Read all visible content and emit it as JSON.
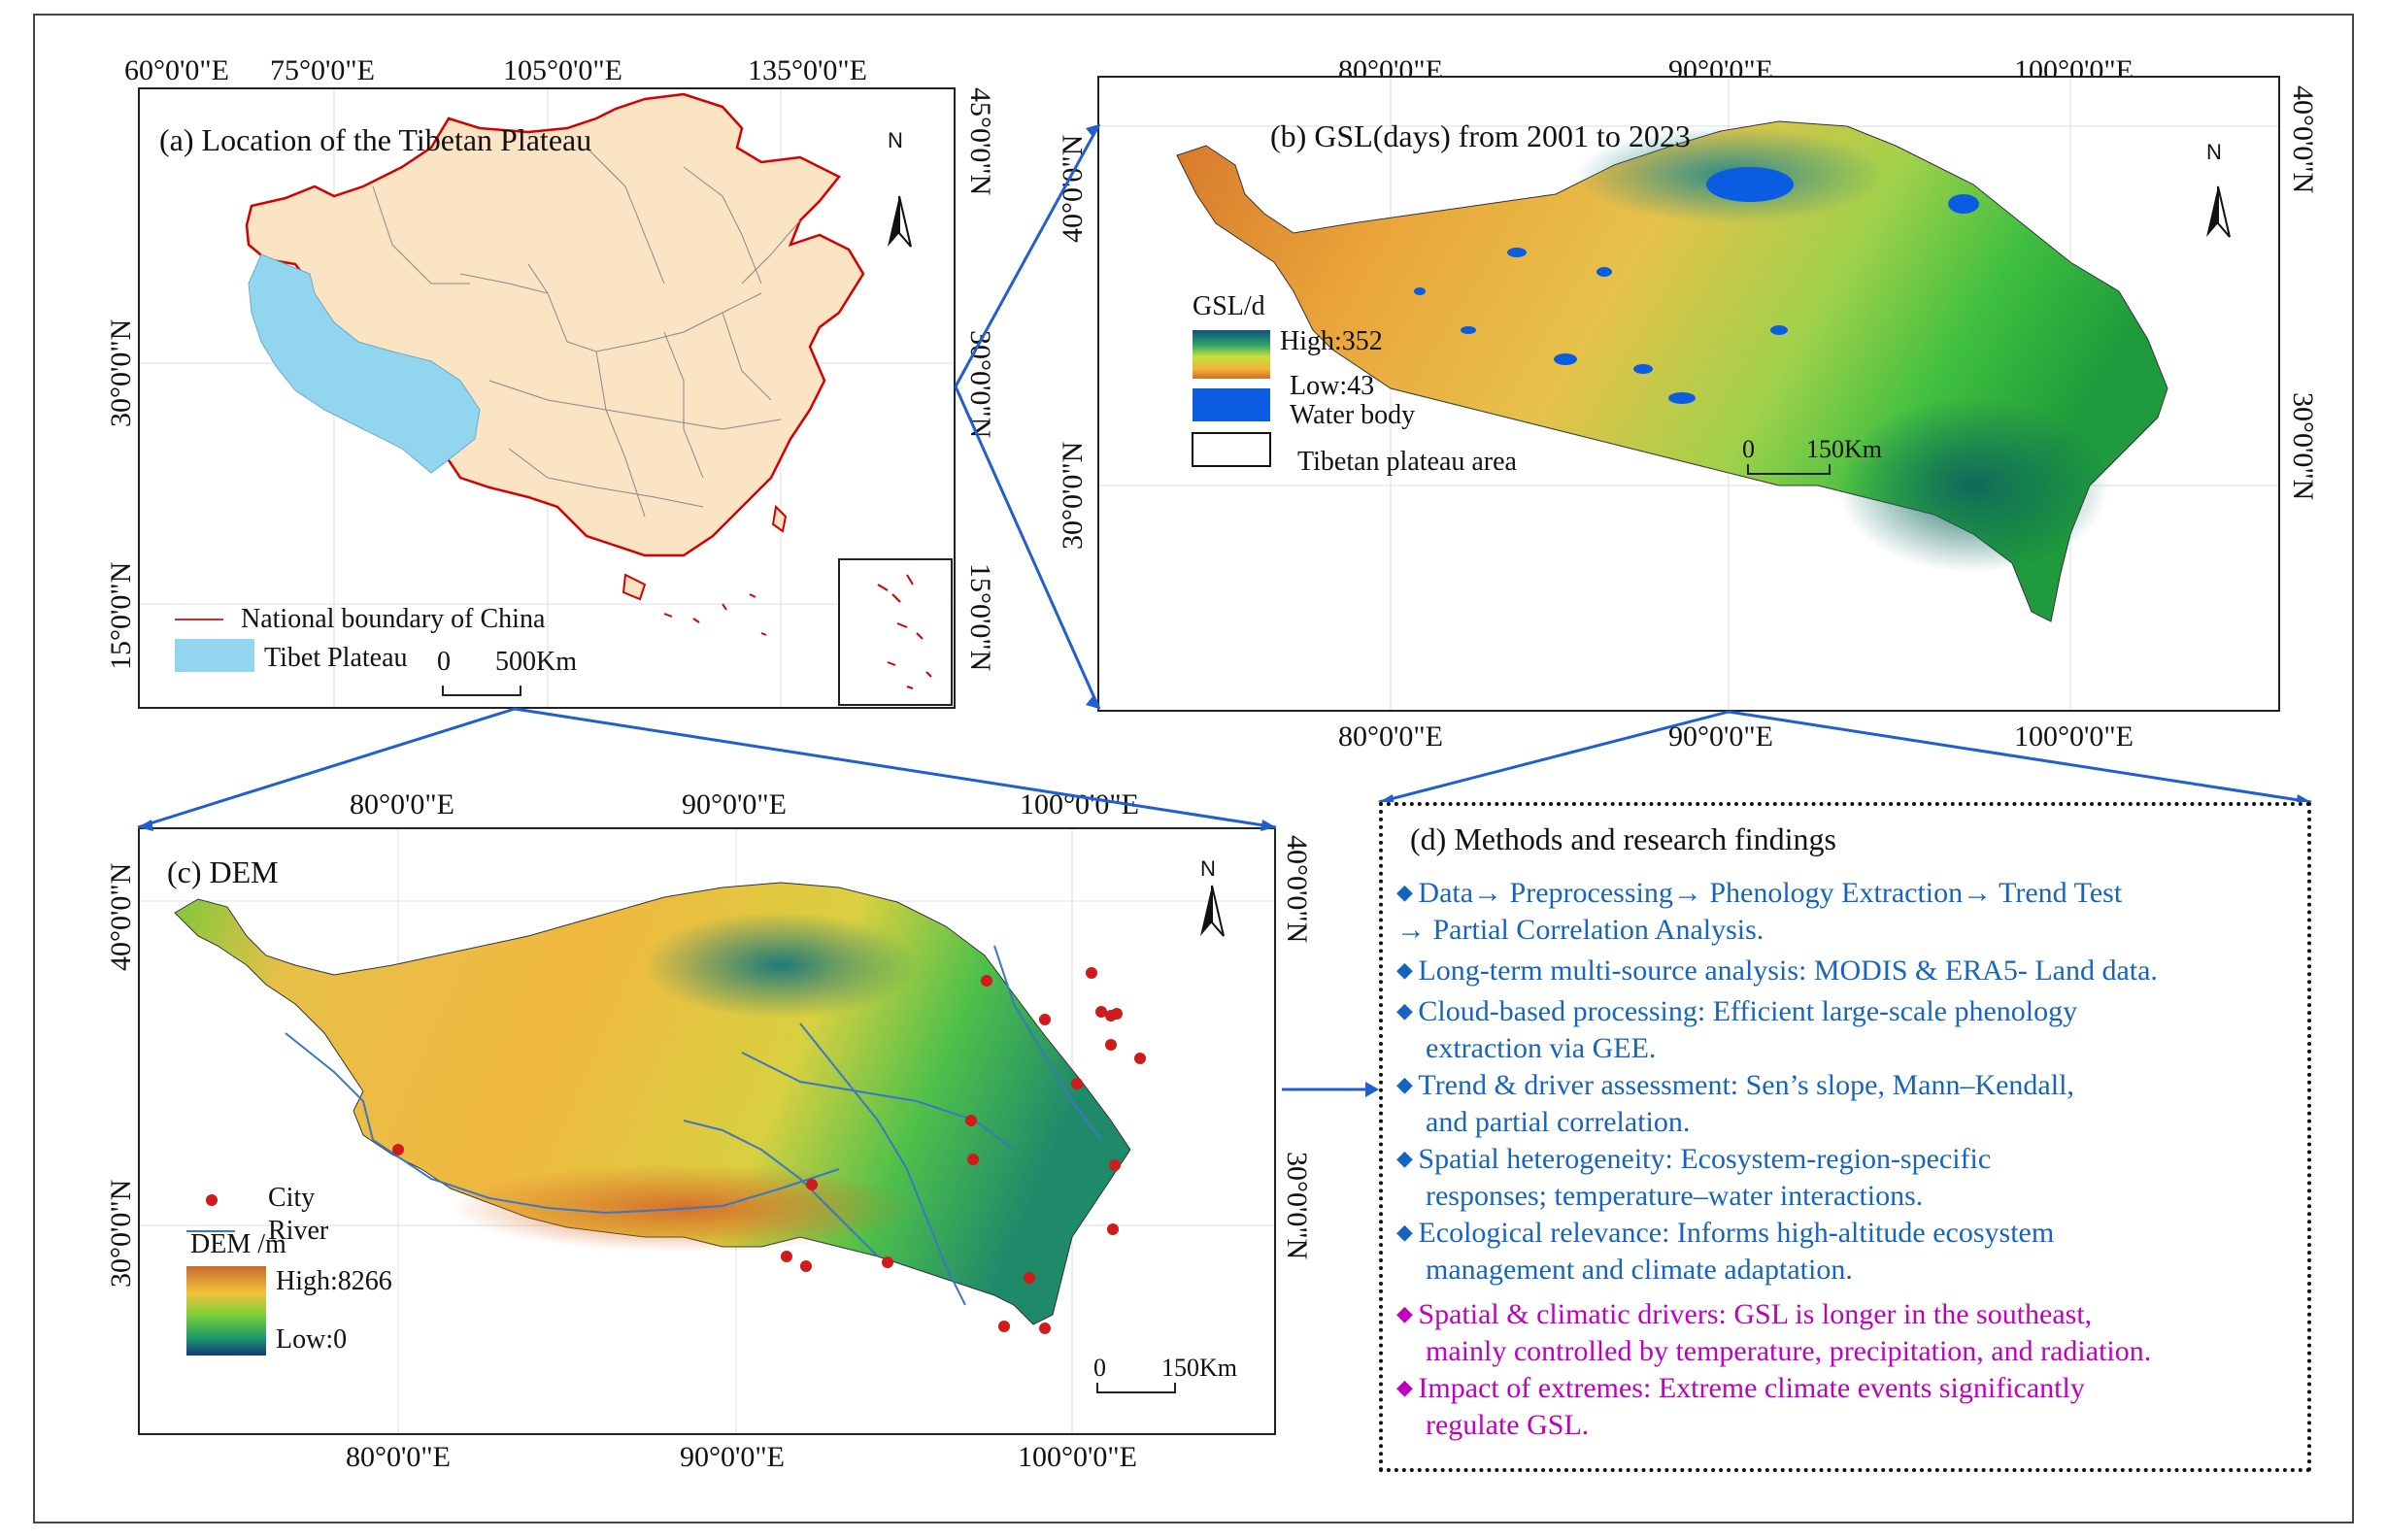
{
  "panel_a": {
    "title": "(a) Location of the Tibetan Plateau",
    "top_ticks": [
      "60°0'0\"E",
      "75°0'0\"E",
      "105°0'0\"E",
      "135°0'0\"E"
    ],
    "left_ticks": [
      "30°0'0\"N",
      "15°0'0\"N"
    ],
    "right_ticks": [
      "45°0'0\"N",
      "30°0'0\"N",
      "15°0'0\"N"
    ],
    "north": "N",
    "legend_boundary": "National boundary of China",
    "legend_plateau": "Tibet Plateau",
    "scale_0": "0",
    "scale_1": "500Km",
    "colors": {
      "plateau": "#92d5ee",
      "china": "#fae4c3",
      "boundary": "#d40000"
    }
  },
  "panel_b": {
    "title": "(b) GSL(days) from 2001 to 2023",
    "top_ticks": [
      "80°0'0\"E",
      "90°0'0\"E",
      "100°0'0\"E"
    ],
    "bottom_ticks": [
      "80°0'0\"E",
      "90°0'0\"E",
      "100°0'0\"E"
    ],
    "left_ticks": [
      "40°0'0\"N",
      "30°0'0\"N"
    ],
    "right_ticks": [
      "40°0'0\"N",
      "30°0'0\"N"
    ],
    "north": "N",
    "legend_title": "GSL/d",
    "legend_high": "High:352",
    "legend_low": "Low:43",
    "legend_water": "Water body",
    "legend_area": "Tibetan plateau area",
    "scale_0": "0",
    "scale_1": "150Km",
    "colors": {
      "water": "#0a5ce0"
    }
  },
  "panel_c": {
    "title": "(c) DEM",
    "top_ticks": [
      "80°0'0\"E",
      "90°0'0\"E",
      "100°0'0\"E"
    ],
    "bottom_ticks": [
      "80°0'0\"E",
      "90°0'0\"E",
      "100°0'0\"E"
    ],
    "left_ticks": [
      "40°0'0\"N",
      "30°0'0\"N"
    ],
    "right_ticks": [
      "40°0'0\"N",
      "30°0'0\"N"
    ],
    "north": "N",
    "legend_city": "City",
    "legend_river": "River",
    "legend_title": "DEM /m",
    "legend_high": "High:8266",
    "legend_low": "Low:0",
    "scale_0": "0",
    "scale_1": "150Km",
    "colors": {
      "city": "#d11a1a",
      "river": "#3a78c2"
    }
  },
  "panel_d": {
    "title": "(d) Methods and research findings",
    "items": [
      {
        "lines": [
          "Data→ Preprocessing→ Phenology Extraction→ Trend Test",
          "→ Partial Correlation Analysis."
        ],
        "color": "blue"
      },
      {
        "lines": [
          "Long-term multi-source analysis:  MODIS & ERA5- Land data."
        ],
        "color": "blue"
      },
      {
        "lines": [
          "Cloud-based processing: Efficient large-scale  phenology",
          "extraction via GEE."
        ],
        "color": "blue"
      },
      {
        "lines": [
          "Trend & driver assessment: Sen’s slope, Mann–Kendall,",
          "and partial correlation."
        ],
        "color": "blue"
      },
      {
        "lines": [
          "Spatial heterogeneity: Ecosystem-region-specific",
          "responses;  temperature–water interactions."
        ],
        "color": "blue"
      },
      {
        "lines": [
          "Ecological relevance: Informs  high-altitude  ecosystem",
          "management and climate adaptation."
        ],
        "color": "blue"
      },
      {
        "lines": [
          "Spatial & climatic drivers: GSL is longer in the southeast,",
          "mainly controlled by temperature, precipitation, and radiation."
        ],
        "color": "magenta"
      },
      {
        "lines": [
          "Impact of extremes: Extreme climate events significantly",
          "regulate GSL."
        ],
        "color": "magenta"
      }
    ],
    "bullet": "◆",
    "colors": {
      "blue": "#1565c0",
      "magenta": "#c000c0"
    }
  }
}
